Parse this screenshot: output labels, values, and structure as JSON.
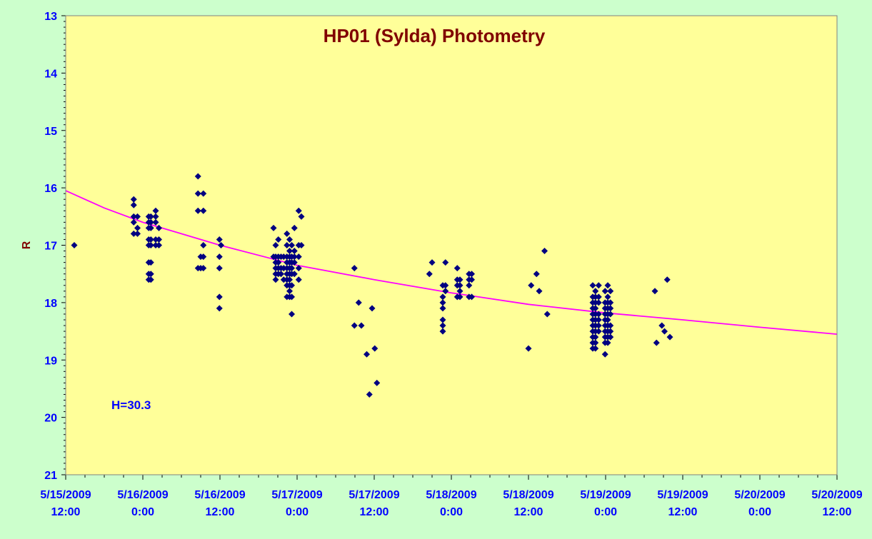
{
  "chart_data": {
    "type": "scatter",
    "title": "HP01 (Sylda) Photometry",
    "ylabel": "R",
    "xlabel": "",
    "annotation": "H=30.3",
    "y_reversed": true,
    "ylim": [
      13,
      21
    ],
    "yticks": [
      13,
      14,
      15,
      16,
      17,
      18,
      19,
      20,
      21
    ],
    "xlim": [
      "2009-05-15 12:00",
      "2009-05-20 12:00"
    ],
    "xticks": [
      {
        "date": "5/15/2009",
        "time": "12:00"
      },
      {
        "date": "5/16/2009",
        "time": "0:00"
      },
      {
        "date": "5/16/2009",
        "time": "12:00"
      },
      {
        "date": "5/17/2009",
        "time": "0:00"
      },
      {
        "date": "5/17/2009",
        "time": "12:00"
      },
      {
        "date": "5/18/2009",
        "time": "0:00"
      },
      {
        "date": "5/18/2009",
        "time": "12:00"
      },
      {
        "date": "5/19/2009",
        "time": "0:00"
      },
      {
        "date": "5/19/2009",
        "time": "12:00"
      },
      {
        "date": "5/20/2009",
        "time": "0:00"
      },
      {
        "date": "5/20/2009",
        "time": "12:00"
      }
    ],
    "grid": false,
    "colors": {
      "page_bg": "#ccffcc",
      "plot_bg": "#ffff99",
      "title": "#800000",
      "ylabel": "#800000",
      "ticks": "#0000ff",
      "annotation": "#0000ff",
      "points": "#000080",
      "fit": "#ff00ff"
    },
    "series": [
      {
        "marker": "diamond",
        "points": [
          [
            "2009-05-15 13:20",
            17.0
          ],
          [
            "2009-05-15 22:35",
            16.2
          ],
          [
            "2009-05-15 22:35",
            16.3
          ],
          [
            "2009-05-15 22:35",
            16.5
          ],
          [
            "2009-05-15 22:35",
            16.6
          ],
          [
            "2009-05-15 22:35",
            16.8
          ],
          [
            "2009-05-15 23:10",
            16.5
          ],
          [
            "2009-05-15 23:10",
            16.7
          ],
          [
            "2009-05-15 23:10",
            16.8
          ],
          [
            "2009-05-16 00:55",
            16.5
          ],
          [
            "2009-05-16 00:55",
            16.6
          ],
          [
            "2009-05-16 00:55",
            16.7
          ],
          [
            "2009-05-16 00:55",
            16.9
          ],
          [
            "2009-05-16 00:55",
            17.0
          ],
          [
            "2009-05-16 00:55",
            17.3
          ],
          [
            "2009-05-16 00:55",
            17.5
          ],
          [
            "2009-05-16 00:55",
            17.6
          ],
          [
            "2009-05-16 01:15",
            16.5
          ],
          [
            "2009-05-16 01:15",
            16.6
          ],
          [
            "2009-05-16 01:15",
            16.7
          ],
          [
            "2009-05-16 01:15",
            16.9
          ],
          [
            "2009-05-16 01:15",
            17.0
          ],
          [
            "2009-05-16 01:15",
            17.3
          ],
          [
            "2009-05-16 01:15",
            17.5
          ],
          [
            "2009-05-16 01:15",
            17.6
          ],
          [
            "2009-05-16 02:00",
            16.4
          ],
          [
            "2009-05-16 02:00",
            16.5
          ],
          [
            "2009-05-16 02:00",
            16.6
          ],
          [
            "2009-05-16 02:00",
            16.9
          ],
          [
            "2009-05-16 02:00",
            17.0
          ],
          [
            "2009-05-16 02:30",
            16.7
          ],
          [
            "2009-05-16 02:30",
            16.9
          ],
          [
            "2009-05-16 02:30",
            17.0
          ],
          [
            "2009-05-16 08:35",
            15.8
          ],
          [
            "2009-05-16 08:35",
            16.1
          ],
          [
            "2009-05-16 08:35",
            16.4
          ],
          [
            "2009-05-16 08:35",
            17.4
          ],
          [
            "2009-05-16 09:00",
            17.2
          ],
          [
            "2009-05-16 09:00",
            17.4
          ],
          [
            "2009-05-16 09:25",
            16.1
          ],
          [
            "2009-05-16 09:25",
            16.4
          ],
          [
            "2009-05-16 09:25",
            17.0
          ],
          [
            "2009-05-16 09:25",
            17.2
          ],
          [
            "2009-05-16 09:25",
            17.4
          ],
          [
            "2009-05-16 11:55",
            16.9
          ],
          [
            "2009-05-16 11:55",
            17.2
          ],
          [
            "2009-05-16 11:55",
            17.4
          ],
          [
            "2009-05-16 11:55",
            17.9
          ],
          [
            "2009-05-16 11:55",
            18.1
          ],
          [
            "2009-05-16 12:10",
            17.0
          ],
          [
            "2009-05-16 20:20",
            16.7
          ],
          [
            "2009-05-16 20:20",
            17.2
          ],
          [
            "2009-05-16 20:40",
            17.0
          ],
          [
            "2009-05-16 20:40",
            17.2
          ],
          [
            "2009-05-16 20:40",
            17.3
          ],
          [
            "2009-05-16 20:40",
            17.4
          ],
          [
            "2009-05-16 20:40",
            17.5
          ],
          [
            "2009-05-16 20:40",
            17.6
          ],
          [
            "2009-05-16 21:05",
            16.9
          ],
          [
            "2009-05-16 21:05",
            17.2
          ],
          [
            "2009-05-16 21:05",
            17.3
          ],
          [
            "2009-05-16 21:05",
            17.4
          ],
          [
            "2009-05-16 21:05",
            17.5
          ],
          [
            "2009-05-16 21:30",
            17.2
          ],
          [
            "2009-05-16 21:30",
            17.4
          ],
          [
            "2009-05-16 21:30",
            17.5
          ],
          [
            "2009-05-16 21:55",
            17.2
          ],
          [
            "2009-05-16 21:55",
            17.4
          ],
          [
            "2009-05-16 21:55",
            17.6
          ],
          [
            "2009-05-16 22:25",
            16.8
          ],
          [
            "2009-05-16 22:25",
            17.0
          ],
          [
            "2009-05-16 22:25",
            17.2
          ],
          [
            "2009-05-16 22:25",
            17.3
          ],
          [
            "2009-05-16 22:25",
            17.4
          ],
          [
            "2009-05-16 22:25",
            17.5
          ],
          [
            "2009-05-16 22:25",
            17.6
          ],
          [
            "2009-05-16 22:25",
            17.7
          ],
          [
            "2009-05-16 22:25",
            17.9
          ],
          [
            "2009-05-16 22:50",
            16.9
          ],
          [
            "2009-05-16 22:50",
            17.1
          ],
          [
            "2009-05-16 22:50",
            17.2
          ],
          [
            "2009-05-16 22:50",
            17.3
          ],
          [
            "2009-05-16 22:50",
            17.4
          ],
          [
            "2009-05-16 22:50",
            17.5
          ],
          [
            "2009-05-16 22:50",
            17.6
          ],
          [
            "2009-05-16 22:50",
            17.7
          ],
          [
            "2009-05-16 22:50",
            17.8
          ],
          [
            "2009-05-16 22:50",
            17.9
          ],
          [
            "2009-05-16 23:10",
            17.0
          ],
          [
            "2009-05-16 23:10",
            17.2
          ],
          [
            "2009-05-16 23:10",
            17.3
          ],
          [
            "2009-05-16 23:10",
            17.4
          ],
          [
            "2009-05-16 23:10",
            17.5
          ],
          [
            "2009-05-16 23:10",
            17.7
          ],
          [
            "2009-05-16 23:10",
            17.9
          ],
          [
            "2009-05-16 23:10",
            18.2
          ],
          [
            "2009-05-16 23:35",
            16.7
          ],
          [
            "2009-05-16 23:35",
            17.1
          ],
          [
            "2009-05-16 23:35",
            17.2
          ],
          [
            "2009-05-16 23:35",
            17.3
          ],
          [
            "2009-05-16 23:35",
            17.5
          ],
          [
            "2009-05-17 00:15",
            16.4
          ],
          [
            "2009-05-17 00:15",
            17.0
          ],
          [
            "2009-05-17 00:15",
            17.2
          ],
          [
            "2009-05-17 00:15",
            17.4
          ],
          [
            "2009-05-17 00:15",
            17.6
          ],
          [
            "2009-05-17 00:40",
            16.5
          ],
          [
            "2009-05-17 00:40",
            17.0
          ],
          [
            "2009-05-17 08:55",
            17.4
          ],
          [
            "2009-05-17 08:55",
            18.4
          ],
          [
            "2009-05-17 09:35",
            18.0
          ],
          [
            "2009-05-17 10:00",
            18.4
          ],
          [
            "2009-05-17 10:50",
            18.9
          ],
          [
            "2009-05-17 11:15",
            19.6
          ],
          [
            "2009-05-17 11:40",
            18.1
          ],
          [
            "2009-05-17 12:05",
            18.8
          ],
          [
            "2009-05-17 12:25",
            19.4
          ],
          [
            "2009-05-17 20:35",
            17.5
          ],
          [
            "2009-05-17 21:00",
            17.3
          ],
          [
            "2009-05-17 22:40",
            17.7
          ],
          [
            "2009-05-17 22:40",
            17.9
          ],
          [
            "2009-05-17 22:40",
            18.0
          ],
          [
            "2009-05-17 22:40",
            18.1
          ],
          [
            "2009-05-17 22:40",
            18.3
          ],
          [
            "2009-05-17 22:40",
            18.4
          ],
          [
            "2009-05-17 22:40",
            18.5
          ],
          [
            "2009-05-17 23:05",
            17.3
          ],
          [
            "2009-05-17 23:05",
            17.7
          ],
          [
            "2009-05-17 23:05",
            17.8
          ],
          [
            "2009-05-18 00:55",
            17.4
          ],
          [
            "2009-05-18 00:55",
            17.6
          ],
          [
            "2009-05-18 00:55",
            17.7
          ],
          [
            "2009-05-18 00:55",
            17.9
          ],
          [
            "2009-05-18 01:20",
            17.6
          ],
          [
            "2009-05-18 01:20",
            17.7
          ],
          [
            "2009-05-18 01:20",
            17.8
          ],
          [
            "2009-05-18 01:20",
            17.9
          ],
          [
            "2009-05-18 02:45",
            17.5
          ],
          [
            "2009-05-18 02:45",
            17.6
          ],
          [
            "2009-05-18 02:45",
            17.7
          ],
          [
            "2009-05-18 02:45",
            17.9
          ],
          [
            "2009-05-18 03:10",
            17.5
          ],
          [
            "2009-05-18 03:10",
            17.6
          ],
          [
            "2009-05-18 03:10",
            17.9
          ],
          [
            "2009-05-18 12:00",
            18.8
          ],
          [
            "2009-05-18 12:25",
            17.7
          ],
          [
            "2009-05-18 13:15",
            17.5
          ],
          [
            "2009-05-18 13:40",
            17.8
          ],
          [
            "2009-05-18 14:30",
            17.1
          ],
          [
            "2009-05-18 14:55",
            18.2
          ],
          [
            "2009-05-18 22:00",
            17.7
          ],
          [
            "2009-05-18 22:00",
            17.9
          ],
          [
            "2009-05-18 22:00",
            18.0
          ],
          [
            "2009-05-18 22:00",
            18.1
          ],
          [
            "2009-05-18 22:00",
            18.2
          ],
          [
            "2009-05-18 22:00",
            18.3
          ],
          [
            "2009-05-18 22:00",
            18.4
          ],
          [
            "2009-05-18 22:00",
            18.5
          ],
          [
            "2009-05-18 22:00",
            18.6
          ],
          [
            "2009-05-18 22:00",
            18.7
          ],
          [
            "2009-05-18 22:00",
            18.8
          ],
          [
            "2009-05-18 22:25",
            17.8
          ],
          [
            "2009-05-18 22:25",
            17.9
          ],
          [
            "2009-05-18 22:25",
            18.0
          ],
          [
            "2009-05-18 22:25",
            18.1
          ],
          [
            "2009-05-18 22:25",
            18.2
          ],
          [
            "2009-05-18 22:25",
            18.3
          ],
          [
            "2009-05-18 22:25",
            18.4
          ],
          [
            "2009-05-18 22:25",
            18.5
          ],
          [
            "2009-05-18 22:25",
            18.6
          ],
          [
            "2009-05-18 22:25",
            18.7
          ],
          [
            "2009-05-18 22:25",
            18.8
          ],
          [
            "2009-05-18 22:55",
            17.7
          ],
          [
            "2009-05-18 22:55",
            17.9
          ],
          [
            "2009-05-18 22:55",
            18.0
          ],
          [
            "2009-05-18 22:55",
            18.2
          ],
          [
            "2009-05-18 22:55",
            18.3
          ],
          [
            "2009-05-18 22:55",
            18.4
          ],
          [
            "2009-05-18 22:55",
            18.5
          ],
          [
            "2009-05-18 23:55",
            17.8
          ],
          [
            "2009-05-18 23:55",
            18.0
          ],
          [
            "2009-05-18 23:55",
            18.1
          ],
          [
            "2009-05-18 23:55",
            18.2
          ],
          [
            "2009-05-18 23:55",
            18.3
          ],
          [
            "2009-05-18 23:55",
            18.4
          ],
          [
            "2009-05-18 23:55",
            18.5
          ],
          [
            "2009-05-18 23:55",
            18.6
          ],
          [
            "2009-05-18 23:55",
            18.7
          ],
          [
            "2009-05-18 23:55",
            18.9
          ],
          [
            "2009-05-19 00:20",
            17.7
          ],
          [
            "2009-05-19 00:20",
            17.9
          ],
          [
            "2009-05-19 00:20",
            18.0
          ],
          [
            "2009-05-19 00:20",
            18.1
          ],
          [
            "2009-05-19 00:20",
            18.2
          ],
          [
            "2009-05-19 00:20",
            18.3
          ],
          [
            "2009-05-19 00:20",
            18.4
          ],
          [
            "2009-05-19 00:20",
            18.5
          ],
          [
            "2009-05-19 00:20",
            18.6
          ],
          [
            "2009-05-19 00:20",
            18.7
          ],
          [
            "2009-05-19 00:45",
            17.8
          ],
          [
            "2009-05-19 00:45",
            18.0
          ],
          [
            "2009-05-19 00:45",
            18.1
          ],
          [
            "2009-05-19 00:45",
            18.2
          ],
          [
            "2009-05-19 00:45",
            18.4
          ],
          [
            "2009-05-19 00:45",
            18.5
          ],
          [
            "2009-05-19 00:45",
            18.6
          ],
          [
            "2009-05-19 07:40",
            17.8
          ],
          [
            "2009-05-19 07:55",
            18.7
          ],
          [
            "2009-05-19 08:45",
            18.4
          ],
          [
            "2009-05-19 09:10",
            18.5
          ],
          [
            "2009-05-19 09:35",
            17.6
          ],
          [
            "2009-05-19 10:00",
            18.6
          ]
        ]
      },
      {
        "style": "line",
        "points": [
          [
            "2009-05-15 12:00",
            16.05
          ],
          [
            "2009-05-15 18:00",
            16.35
          ],
          [
            "2009-05-16 00:00",
            16.6
          ],
          [
            "2009-05-16 06:00",
            16.8
          ],
          [
            "2009-05-16 12:00",
            17.0
          ],
          [
            "2009-05-17 00:00",
            17.35
          ],
          [
            "2009-05-17 12:00",
            17.6
          ],
          [
            "2009-05-18 00:00",
            17.83
          ],
          [
            "2009-05-18 12:00",
            18.03
          ],
          [
            "2009-05-19 00:00",
            18.18
          ],
          [
            "2009-05-19 12:00",
            18.3
          ],
          [
            "2009-05-20 00:00",
            18.43
          ],
          [
            "2009-05-20 12:00",
            18.55
          ]
        ]
      }
    ]
  }
}
